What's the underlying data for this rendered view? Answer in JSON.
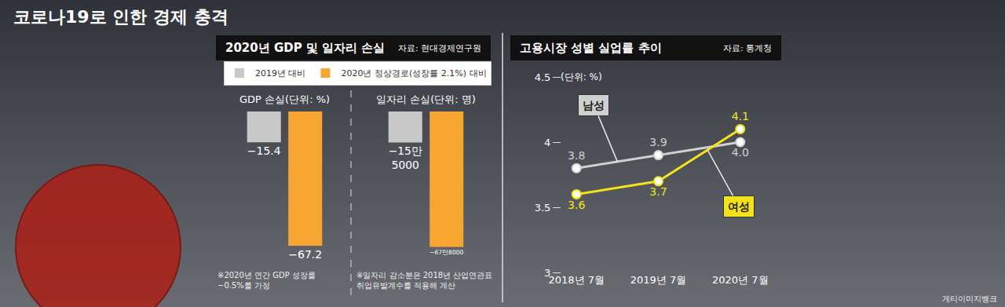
{
  "title": "코로나19로 인한 경제 충격",
  "credit": "게티이미지뱅크",
  "chart_data": [
    {
      "type": "bar",
      "group_title": "2020년 GDP 및 일자리 손실",
      "source": "자료: 현대경제연구원",
      "title": "GDP 손실(단위: %)",
      "categories": [
        "2019년 대비",
        "2020년 정상경로(성장률 2.1%) 대비"
      ],
      "values": [
        -15.4,
        -67.2
      ],
      "value_labels": [
        "−15.4",
        "−67.2"
      ],
      "colors": [
        "#c8c8c8",
        "#f7a631"
      ],
      "data_labels": true,
      "legend": "top left",
      "tick_labels": false,
      "grid": false,
      "ylim": [
        -70,
        0
      ],
      "note": [
        "※2020년 연간 GDP 성장률",
        "−0.5%를 가정"
      ]
    },
    {
      "type": "bar",
      "title": "일자리 손실(단위: 명)",
      "categories": [
        "2019년 대비",
        "2020년 정상경로(성장률 2.1%) 대비"
      ],
      "values": [
        -155000,
        -678000
      ],
      "value_labels": [
        "−15만 5000",
        "−67만8000"
      ],
      "colors": [
        "#c8c8c8",
        "#f7a631"
      ],
      "data_labels": true,
      "tick_labels": false,
      "grid": false,
      "ylim": [
        -700000,
        0
      ],
      "note": [
        "※일자리 감소분은 2018년 산업연관표",
        "취업유발계수를 적용해 계산"
      ]
    },
    {
      "type": "line",
      "title": "고용시장 성별 실업률 추이",
      "source": "자료: 통계청",
      "y_label": "(단위: %)",
      "categories": [
        "2018년 7월",
        "2019년 7월",
        "2020년 7월"
      ],
      "series": [
        {
          "name": "남성",
          "color": "#d0d0d0",
          "values": [
            3.8,
            3.9,
            4.0
          ],
          "value_labels": [
            "3.8",
            "3.9",
            "4.0"
          ]
        },
        {
          "name": "여성",
          "color": "#f5e21b",
          "values": [
            3.6,
            3.7,
            4.1
          ],
          "value_labels": [
            "3.6",
            "3.7",
            "4.1"
          ]
        }
      ],
      "ylim": [
        3,
        4.5
      ],
      "yticks": [
        3,
        3.5,
        4,
        4.5
      ],
      "data_labels": true,
      "grid": false,
      "marker": "circle",
      "legend": "callout"
    }
  ]
}
